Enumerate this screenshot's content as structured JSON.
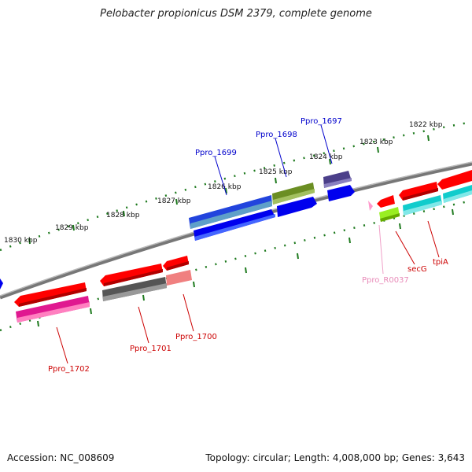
{
  "title": "Pelobacter propionicus DSM 2379, complete genome",
  "footer": {
    "accession": "Accession: NC_008609",
    "summary": "Topology: circular; Length: 4,008,000 bp; Genes: 3,643"
  },
  "tick_labels": [
    "1830 kbp",
    "1829 kbp",
    "1828 kbp",
    "1827 kbp",
    "1826 kbp",
    "1825 kbp",
    "1824 kbp",
    "1823 kbp",
    "1822 kbp"
  ],
  "gene_labels": [
    "Ppro_1697",
    "Ppro_1698",
    "Ppro_1699",
    "Ppro_1700",
    "Ppro_1701",
    "Ppro_1702",
    "Ppro_R0037",
    "secG",
    "tpiA"
  ],
  "colors": {
    "backbone": "#808080",
    "ticks": "#1e7a1e",
    "label_blue": "#0000cc",
    "label_red": "#cc0000",
    "label_pink": "#e88ab8",
    "red": "#ff0000",
    "blue": "#0000ee",
    "steelblue": "#3366cc",
    "olive": "#6b8e23",
    "navy": "#4b3f8a",
    "magenta": "#e01890",
    "gray": "#606060",
    "salmon": "#f08080",
    "lime": "#99ee22",
    "cyan": "#11cccc",
    "pink": "#ff99cc"
  }
}
